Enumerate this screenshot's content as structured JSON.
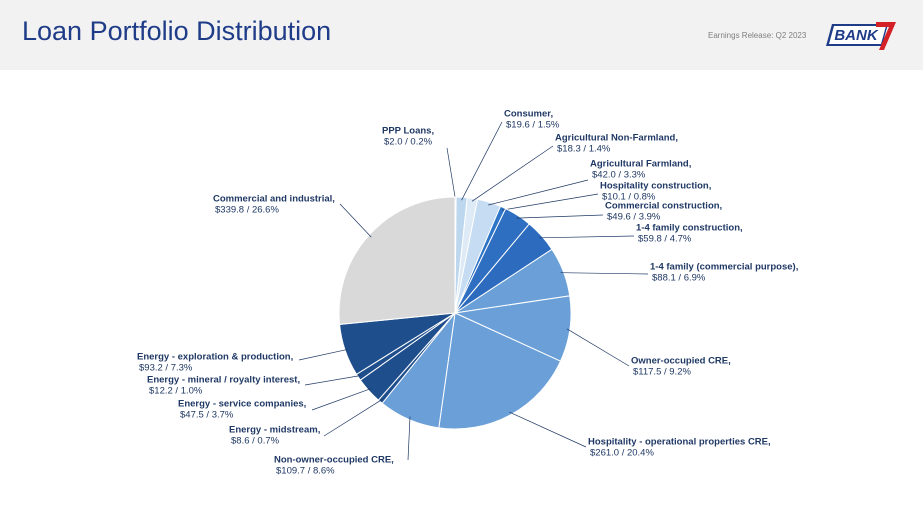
{
  "header": {
    "title": "Loan Portfolio Distribution",
    "release": "Earnings Release: Q2 2023",
    "logo": "BANK"
  },
  "chart_data": {
    "type": "pie",
    "categories": [
      "PPP Loans,",
      "Consumer,",
      "Agricultural Non-Farmland,",
      "Agricultural Farmland,",
      "Hospitality construction,",
      "Commercial construction,",
      "1-4 family construction,",
      "1-4 family (commercial purpose),",
      "Owner-occupied CRE,",
      "Hospitality - operational properties CRE,",
      "Non-owner-occupied CRE,",
      "Energy - midstream,",
      "Energy - service companies,",
      "Energy - mineral / royalty interest,",
      "Energy - exploration & production,",
      "Commercial and industrial,"
    ],
    "values": [
      2.0,
      19.6,
      18.3,
      42.0,
      10.1,
      49.6,
      59.8,
      88.1,
      117.5,
      261.0,
      109.7,
      8.6,
      47.5,
      12.2,
      93.2,
      339.8
    ],
    "value_labels": [
      "$2.0  /  0.2%",
      "$19.6  /  1.5%",
      "$18.3 / 1.4%",
      "$42.0  /  3.3%",
      "$10.1  /  0.8%",
      "$49.6  /  3.9%",
      "$59.8  /  4.7%",
      "$88.1  /  6.9%",
      "$117.5  /  9.2%",
      "$261.0  /  20.4%",
      "$109.7  /  8.6%",
      "$8.6  /  0.7%",
      "$47.5  /  3.7%",
      "$12.2  / 1.0%",
      "$93.2  /  7.3%",
      "$339.8  /  26.6%"
    ],
    "colors": [
      "#a6a6a6",
      "#bdd7ee",
      "#deebf7",
      "#c5dcf2",
      "#2e75c8",
      "#2f6fc2",
      "#2c6bbd",
      "#6a9fd8",
      "#6a9fd8",
      "#6a9fd8",
      "#6a9fd8",
      "#1f4e8c",
      "#1f4e8c",
      "#1f4e8c",
      "#1f4e8c",
      "#d9d9d9"
    ]
  }
}
